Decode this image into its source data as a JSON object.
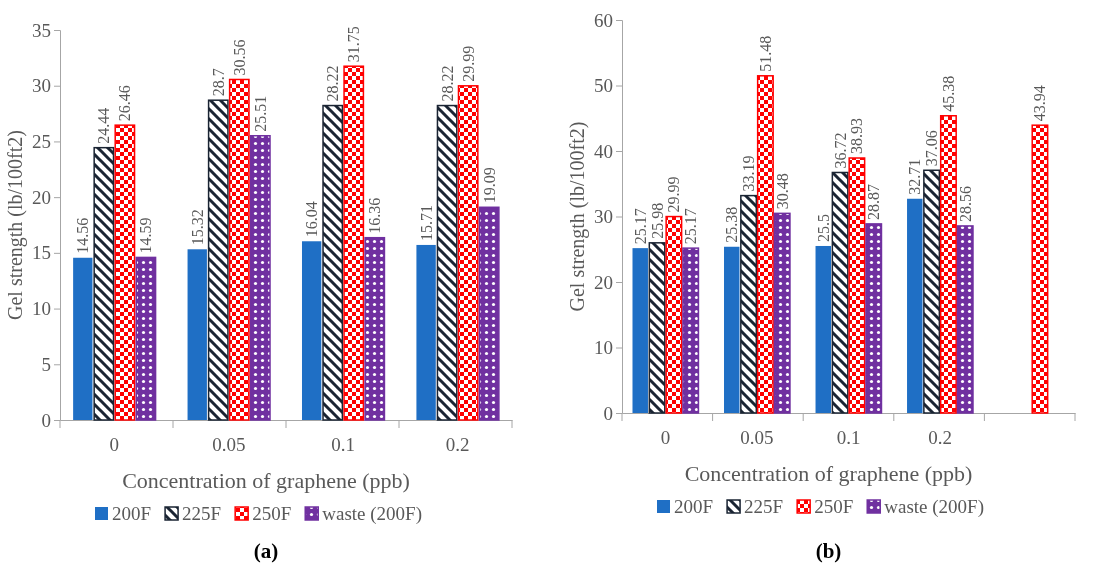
{
  "chart_data": [
    {
      "type": "bar",
      "xlabel": "Concentration of graphene (ppb)",
      "ylabel": "Gel strength (lb/100ft2)",
      "categories": [
        "0",
        "0.05",
        "0.1",
        "0.2"
      ],
      "series": [
        {
          "name": "200F",
          "color": "#1f6fc5",
          "values": [
            14.56,
            15.32,
            16.04,
            15.71
          ]
        },
        {
          "name": "225F",
          "color": "#1a2433",
          "values": [
            24.44,
            28.7,
            28.22,
            28.22
          ]
        },
        {
          "name": "250F",
          "color": "#ff0000",
          "values": [
            26.46,
            30.56,
            31.75,
            29.99
          ]
        },
        {
          "name": "waste (200F)",
          "color": "#7030a0",
          "values": [
            14.59,
            25.51,
            16.36,
            19.09
          ]
        }
      ],
      "ylim": [
        0,
        35
      ],
      "yticks": [
        0,
        5,
        10,
        15,
        20,
        25,
        30,
        35
      ],
      "data_labels": true,
      "legend": "bottom",
      "grid": false,
      "annotations": [
        "(a)"
      ]
    },
    {
      "type": "bar",
      "xlabel": "Concentration of graphene (ppb)",
      "ylabel": "Gel strength (lb/100ft2)",
      "categories": [
        "0",
        "0.05",
        "0.1",
        "0.2",
        null
      ],
      "series": [
        {
          "name": "200F",
          "color": "#1f6fc5",
          "values": [
            25.17,
            25.38,
            25.5,
            32.71,
            null
          ]
        },
        {
          "name": "225F",
          "color": "#1a2433",
          "values": [
            25.98,
            33.19,
            36.72,
            37.06,
            null
          ]
        },
        {
          "name": "250F",
          "color": "#ff0000",
          "values": [
            29.99,
            51.48,
            38.93,
            45.38,
            43.94
          ]
        },
        {
          "name": "waste (200F)",
          "color": "#7030a0",
          "values": [
            25.17,
            30.48,
            28.87,
            28.56,
            null
          ]
        }
      ],
      "ylim": [
        0,
        60
      ],
      "yticks": [
        0,
        10,
        20,
        30,
        40,
        50,
        60
      ],
      "data_labels": true,
      "legend": "bottom",
      "grid": false,
      "annotations": [
        "(b)"
      ]
    }
  ]
}
